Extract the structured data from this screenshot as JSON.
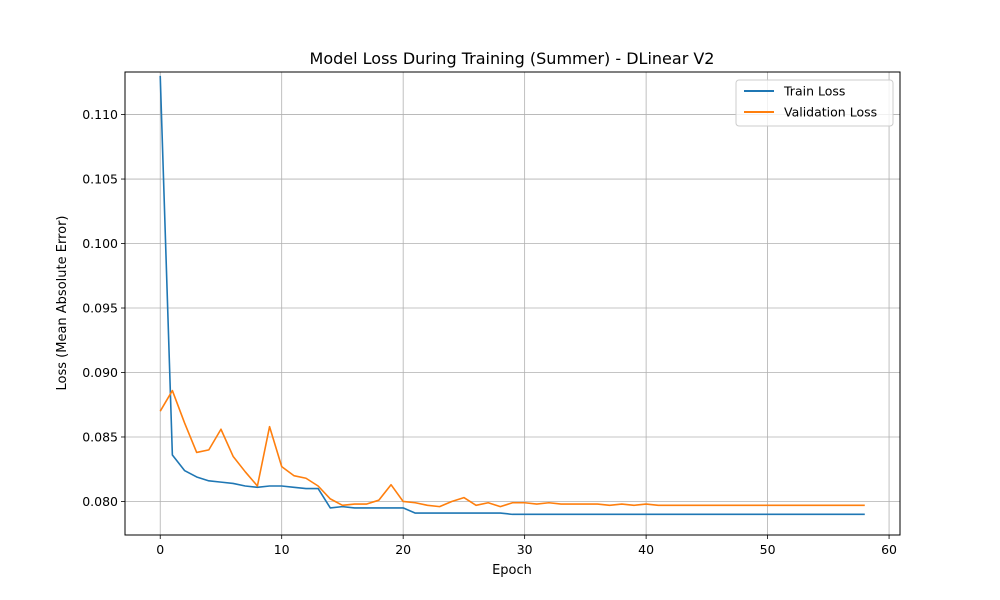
{
  "chart_data": {
    "type": "line",
    "title": "Model Loss During Training (Summer) - DLinear V2",
    "xlabel": "Epoch",
    "ylabel": "Loss (Mean Absolute Error)",
    "xlim": [
      -2.9,
      60.9
    ],
    "ylim": [
      0.0774,
      0.1133
    ],
    "xticks": [
      0,
      10,
      20,
      30,
      40,
      50,
      60
    ],
    "yticks": [
      0.08,
      0.085,
      0.09,
      0.095,
      0.1,
      0.105,
      0.11
    ],
    "ytick_labels": [
      "0.080",
      "0.085",
      "0.090",
      "0.095",
      "0.100",
      "0.105",
      "0.110"
    ],
    "grid": true,
    "legend_position": "top-right",
    "x": [
      0,
      1,
      2,
      3,
      4,
      5,
      6,
      7,
      8,
      9,
      10,
      11,
      12,
      13,
      14,
      15,
      16,
      17,
      18,
      19,
      20,
      21,
      22,
      23,
      24,
      25,
      26,
      27,
      28,
      29,
      30,
      31,
      32,
      33,
      34,
      35,
      36,
      37,
      38,
      39,
      40,
      41,
      42,
      43,
      44,
      45,
      46,
      47,
      48,
      49,
      50,
      51,
      52,
      53,
      54,
      55,
      56,
      57,
      58
    ],
    "series": [
      {
        "name": "Train Loss",
        "color": "#1f77b4",
        "values": [
          0.113,
          0.0836,
          0.0824,
          0.0819,
          0.0816,
          0.0815,
          0.0814,
          0.0812,
          0.0811,
          0.0812,
          0.0812,
          0.0811,
          0.081,
          0.081,
          0.0795,
          0.0796,
          0.0795,
          0.0795,
          0.0795,
          0.0795,
          0.0795,
          0.0791,
          0.0791,
          0.0791,
          0.0791,
          0.0791,
          0.0791,
          0.0791,
          0.0791,
          0.079,
          0.079,
          0.079,
          0.079,
          0.079,
          0.079,
          0.079,
          0.079,
          0.079,
          0.079,
          0.079,
          0.079,
          0.079,
          0.079,
          0.079,
          0.079,
          0.079,
          0.079,
          0.079,
          0.079,
          0.079,
          0.079,
          0.079,
          0.079,
          0.079,
          0.079,
          0.079,
          0.079,
          0.079,
          0.079
        ]
      },
      {
        "name": "Validation Loss",
        "color": "#ff7f0e",
        "values": [
          0.087,
          0.0886,
          0.0861,
          0.0838,
          0.084,
          0.0856,
          0.0835,
          0.0823,
          0.0812,
          0.0858,
          0.0827,
          0.082,
          0.0818,
          0.0812,
          0.0802,
          0.0797,
          0.0798,
          0.0798,
          0.0801,
          0.0813,
          0.08,
          0.0799,
          0.0797,
          0.0796,
          0.08,
          0.0803,
          0.0797,
          0.0799,
          0.0796,
          0.0799,
          0.0799,
          0.0798,
          0.0799,
          0.0798,
          0.0798,
          0.0798,
          0.0798,
          0.0797,
          0.0798,
          0.0797,
          0.0798,
          0.0797,
          0.0797,
          0.0797,
          0.0797,
          0.0797,
          0.0797,
          0.0797,
          0.0797,
          0.0797,
          0.0797,
          0.0797,
          0.0797,
          0.0797,
          0.0797,
          0.0797,
          0.0797,
          0.0797,
          0.0797
        ]
      }
    ]
  }
}
